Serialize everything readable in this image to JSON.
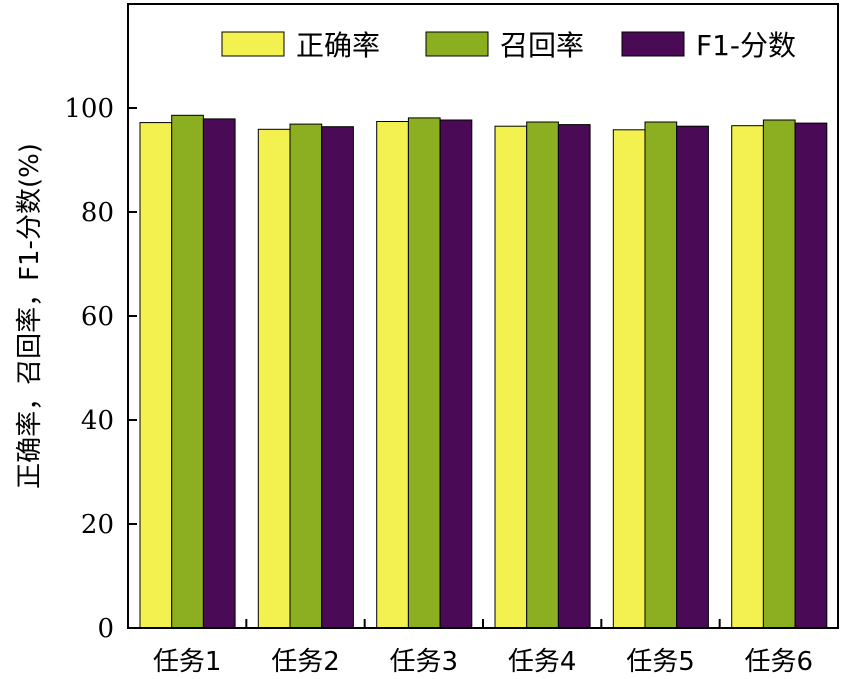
{
  "chart_data": {
    "type": "bar",
    "title": "",
    "xlabel": "",
    "ylabel": "正确率，召回率，F1-分数(%)",
    "ylim": [
      0,
      120
    ],
    "yticks": [
      0,
      20,
      40,
      60,
      80,
      100
    ],
    "grid": false,
    "legend_position": "top-right",
    "categories": [
      "任务1",
      "任务2",
      "任务3",
      "任务4",
      "任务5",
      "任务6"
    ],
    "series": [
      {
        "name": "正确率",
        "color": "#f3f14f",
        "values": [
          97.2,
          95.9,
          97.4,
          96.5,
          95.8,
          96.6
        ]
      },
      {
        "name": "召回率",
        "color": "#8caf21",
        "values": [
          98.6,
          96.9,
          98.1,
          97.3,
          97.3,
          97.7
        ]
      },
      {
        "name": "F1-分数",
        "color": "#4b0a55",
        "values": [
          97.9,
          96.4,
          97.7,
          96.8,
          96.5,
          97.1
        ]
      }
    ]
  }
}
